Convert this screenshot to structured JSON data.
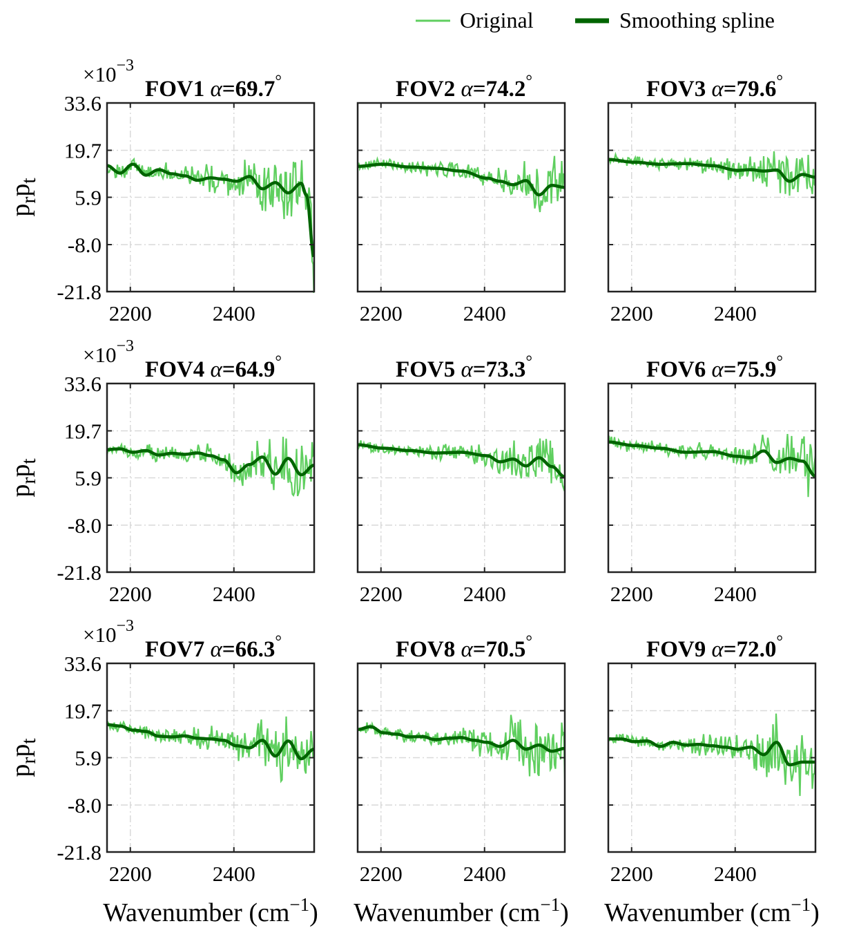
{
  "legend": {
    "original_label": "Original",
    "spline_label": "Smoothing spline",
    "placement": "top-right"
  },
  "colors": {
    "original": "#5fcf5f",
    "spline": "#006400",
    "axes": "#222222",
    "grid": "#d9d9d9"
  },
  "axes": {
    "ylabel_main": "p",
    "ylabel_sub1": "r",
    "ylabel_mid": "p",
    "ylabel_sub2": "t",
    "xlabel_main": "Wavenumber (cm",
    "xlabel_sup": "−1",
    "xlabel_close": ")",
    "exponent_base": "×10",
    "exponent_power": "−3",
    "alpha_symbol": "α",
    "degree_symbol": "°"
  },
  "chart_data": {
    "type": "line",
    "grid": true,
    "xlim": [
      2155,
      2555
    ],
    "ylim": [
      -21.8,
      33.6
    ],
    "yscale_factor": "×10^-3",
    "xticks": [
      2200,
      2400
    ],
    "xtick_labels": [
      "2200",
      "2400"
    ],
    "yticks": [
      33.6,
      19.7,
      5.9,
      -8.0,
      -21.8
    ],
    "ytick_labels": [
      "33.6",
      "19.7",
      "5.9",
      "-8.0",
      "-21.8"
    ],
    "xlabel": "Wavenumber (cm−1)",
    "ylabel": "prpt",
    "series_names": [
      "Original",
      "Smoothing spline"
    ],
    "panels": [
      {
        "fov": "FOV1",
        "alpha": "=69.7",
        "x": [
          2155,
          2180,
          2205,
          2230,
          2255,
          2280,
          2305,
          2330,
          2355,
          2380,
          2405,
          2430,
          2455,
          2480,
          2505,
          2530,
          2540,
          2555
        ],
        "spline": [
          15.2,
          13.0,
          15.6,
          12.4,
          14.0,
          12.8,
          12.2,
          10.9,
          11.6,
          11.2,
          10.6,
          12.0,
          8.4,
          10.2,
          7.2,
          10.0,
          6.5,
          -11.8
        ],
        "amp": [
          1.6,
          1.8,
          1.8,
          1.8,
          1.9,
          2.0,
          2.2,
          2.6,
          3.0,
          3.4,
          4.2,
          5.0,
          6.0,
          7.0,
          8.5,
          9.5,
          10.0,
          10.0
        ]
      },
      {
        "fov": "FOV2",
        "alpha": "=74.2",
        "x": [
          2155,
          2205,
          2255,
          2305,
          2355,
          2405,
          2430,
          2455,
          2480,
          2505,
          2530,
          2555
        ],
        "spline": [
          15.0,
          15.6,
          14.8,
          14.4,
          13.6,
          11.5,
          10.6,
          9.6,
          10.8,
          6.6,
          9.4,
          8.8
        ],
        "amp": [
          1.2,
          1.2,
          1.4,
          1.6,
          1.9,
          2.3,
          2.8,
          3.3,
          4.5,
          5.5,
          6.0,
          5.5
        ]
      },
      {
        "fov": "FOV3",
        "alpha": "=79.6",
        "x": [
          2155,
          2205,
          2255,
          2305,
          2355,
          2405,
          2430,
          2455,
          2480,
          2505,
          2530,
          2555
        ],
        "spline": [
          17.0,
          16.2,
          15.6,
          15.8,
          15.2,
          13.8,
          14.0,
          13.6,
          13.9,
          10.6,
          12.6,
          11.8
        ],
        "amp": [
          1.1,
          1.2,
          1.4,
          1.6,
          2.0,
          2.6,
          3.2,
          3.8,
          4.5,
          5.5,
          5.5,
          5.0
        ]
      },
      {
        "fov": "FOV4",
        "alpha": "=64.9",
        "x": [
          2155,
          2180,
          2205,
          2230,
          2255,
          2280,
          2305,
          2330,
          2355,
          2380,
          2405,
          2430,
          2455,
          2480,
          2505,
          2530,
          2555
        ],
        "spline": [
          14.2,
          14.4,
          13.4,
          13.9,
          12.6,
          13.1,
          12.8,
          13.2,
          12.4,
          11.2,
          7.4,
          9.8,
          12.0,
          7.0,
          11.6,
          6.8,
          9.6
        ],
        "amp": [
          1.2,
          1.3,
          1.4,
          1.5,
          1.6,
          1.7,
          1.9,
          2.1,
          2.5,
          2.9,
          3.4,
          4.0,
          4.8,
          5.8,
          7.0,
          8.0,
          8.0
        ]
      },
      {
        "fov": "FOV5",
        "alpha": "=73.3",
        "x": [
          2155,
          2205,
          2255,
          2305,
          2355,
          2405,
          2430,
          2455,
          2480,
          2505,
          2530,
          2555
        ],
        "spline": [
          15.6,
          14.6,
          13.9,
          13.2,
          13.4,
          12.4,
          10.6,
          11.4,
          9.4,
          11.8,
          9.2,
          6.2
        ],
        "amp": [
          1.2,
          1.3,
          1.5,
          1.7,
          2.0,
          2.4,
          2.9,
          3.5,
          4.3,
          5.2,
          6.0,
          6.0
        ]
      },
      {
        "fov": "FOV6",
        "alpha": "=75.9",
        "x": [
          2155,
          2205,
          2255,
          2305,
          2355,
          2405,
          2430,
          2455,
          2480,
          2505,
          2530,
          2555
        ],
        "spline": [
          16.4,
          15.4,
          14.6,
          13.4,
          13.6,
          12.2,
          11.8,
          13.8,
          10.4,
          11.6,
          10.8,
          6.4
        ],
        "amp": [
          1.2,
          1.3,
          1.5,
          1.7,
          2.0,
          2.5,
          3.0,
          3.6,
          4.6,
          5.6,
          6.5,
          6.5
        ]
      },
      {
        "fov": "FOV7",
        "alpha": "=66.3",
        "x": [
          2155,
          2180,
          2205,
          2230,
          2255,
          2280,
          2305,
          2330,
          2355,
          2380,
          2405,
          2430,
          2455,
          2480,
          2505,
          2530,
          2555
        ],
        "spline": [
          15.6,
          15.2,
          14.0,
          13.6,
          12.2,
          12.0,
          12.3,
          11.6,
          11.4,
          11.0,
          9.4,
          8.8,
          11.0,
          6.4,
          10.8,
          5.6,
          8.4
        ],
        "amp": [
          1.2,
          1.3,
          1.4,
          1.5,
          1.6,
          1.8,
          2.0,
          2.3,
          2.6,
          3.0,
          3.5,
          4.2,
          5.0,
          6.0,
          7.0,
          7.5,
          7.5
        ]
      },
      {
        "fov": "FOV8",
        "alpha": "=70.5",
        "x": [
          2155,
          2180,
          2205,
          2230,
          2255,
          2280,
          2305,
          2330,
          2355,
          2380,
          2405,
          2430,
          2455,
          2480,
          2505,
          2530,
          2555
        ],
        "spline": [
          14.2,
          15.0,
          13.2,
          12.8,
          12.0,
          12.1,
          11.2,
          11.6,
          11.8,
          11.0,
          10.4,
          9.2,
          11.0,
          8.4,
          9.6,
          7.8,
          8.6
        ],
        "amp": [
          1.2,
          1.3,
          1.4,
          1.5,
          1.6,
          1.8,
          2.0,
          2.3,
          2.6,
          3.0,
          3.5,
          4.2,
          5.0,
          6.0,
          6.5,
          6.5,
          6.5
        ]
      },
      {
        "fov": "FOV9",
        "alpha": "=72.0",
        "x": [
          2155,
          2180,
          2205,
          2230,
          2255,
          2280,
          2305,
          2330,
          2355,
          2380,
          2405,
          2430,
          2455,
          2480,
          2505,
          2530,
          2555
        ],
        "spline": [
          11.4,
          11.4,
          10.6,
          10.8,
          9.2,
          10.4,
          9.6,
          9.8,
          9.4,
          9.0,
          8.4,
          9.0,
          6.8,
          10.4,
          3.8,
          4.6,
          4.6
        ],
        "amp": [
          1.1,
          1.2,
          1.3,
          1.4,
          1.5,
          1.7,
          1.9,
          2.2,
          2.5,
          2.9,
          3.4,
          4.0,
          4.8,
          5.8,
          6.5,
          7.0,
          7.0
        ]
      }
    ]
  }
}
